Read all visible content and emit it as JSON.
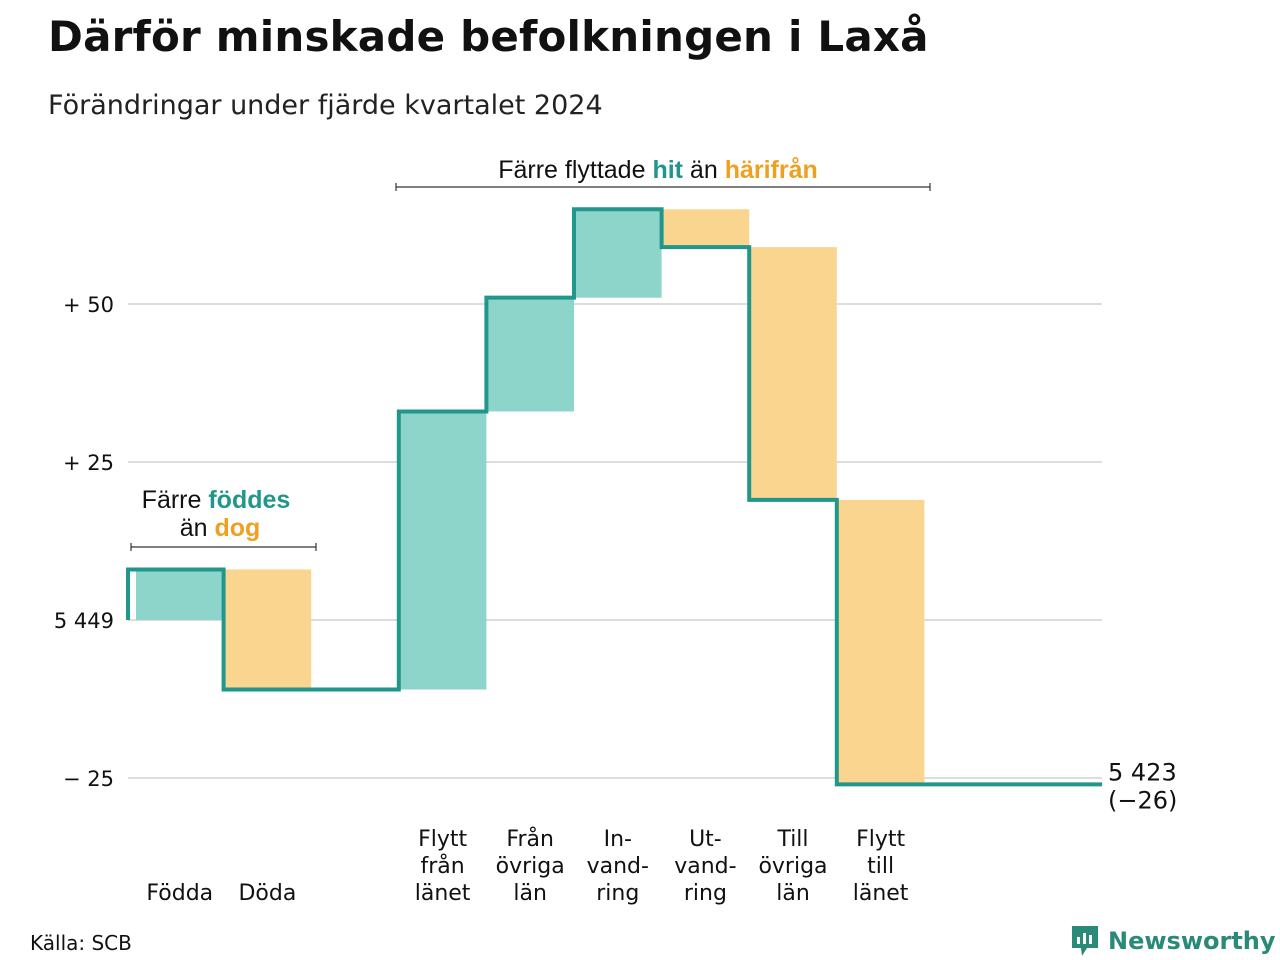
{
  "title": "Därför minskade befolkningen i Laxå",
  "subtitle": "Förändringar under fjärde kvartalet 2024",
  "source": "Källa: SCB",
  "brand": "Newsworthy",
  "colors": {
    "increase_fill": "#8dd5cb",
    "decrease_fill": "#fad58f",
    "line": "#21968a",
    "teal_text": "#21968a",
    "orange_text": "#f0a020",
    "grid": "#dddddd"
  },
  "chart_data": {
    "type": "waterfall",
    "start_value": 5449,
    "end_value": 5423,
    "end_label": "5 423",
    "end_change_label": "(−26)",
    "y_ticks": [
      {
        "value": 50,
        "label": "+ 50"
      },
      {
        "value": 25,
        "label": "+ 25"
      },
      {
        "value": 0,
        "label": "5 449"
      },
      {
        "value": -25,
        "label": "− 25"
      }
    ],
    "ylim": [
      -26,
      70
    ],
    "steps": [
      {
        "label": [
          "Födda"
        ],
        "change": 8
      },
      {
        "label": [
          "Döda"
        ],
        "change": -19
      },
      {
        "label": [
          ""
        ],
        "change": 0
      },
      {
        "label": [
          "Flytt",
          "från",
          "länet"
        ],
        "change": 44
      },
      {
        "label": [
          "Från",
          "övriga",
          "län"
        ],
        "change": 18
      },
      {
        "label": [
          "In-",
          "vand-",
          "ring"
        ],
        "change": 14
      },
      {
        "label": [
          "Ut-",
          "vand-",
          "ring"
        ],
        "change": -6
      },
      {
        "label": [
          "Till",
          "övriga",
          "län"
        ],
        "change": -40
      },
      {
        "label": [
          "Flytt",
          "till",
          "länet"
        ],
        "change": -45
      }
    ],
    "annotations": [
      {
        "parts": [
          {
            "text": "Färre ",
            "color": "plain"
          },
          {
            "text": "föddes",
            "color": "teal"
          }
        ],
        "parts2": [
          {
            "text": "än ",
            "color": "plain"
          },
          {
            "text": "dog",
            "color": "orange"
          }
        ]
      },
      {
        "parts": [
          {
            "text": "Färre flyttade ",
            "color": "plain"
          },
          {
            "text": "hit",
            "color": "teal"
          },
          {
            "text": " än ",
            "color": "plain"
          },
          {
            "text": "härifrån",
            "color": "orange"
          }
        ]
      }
    ]
  }
}
